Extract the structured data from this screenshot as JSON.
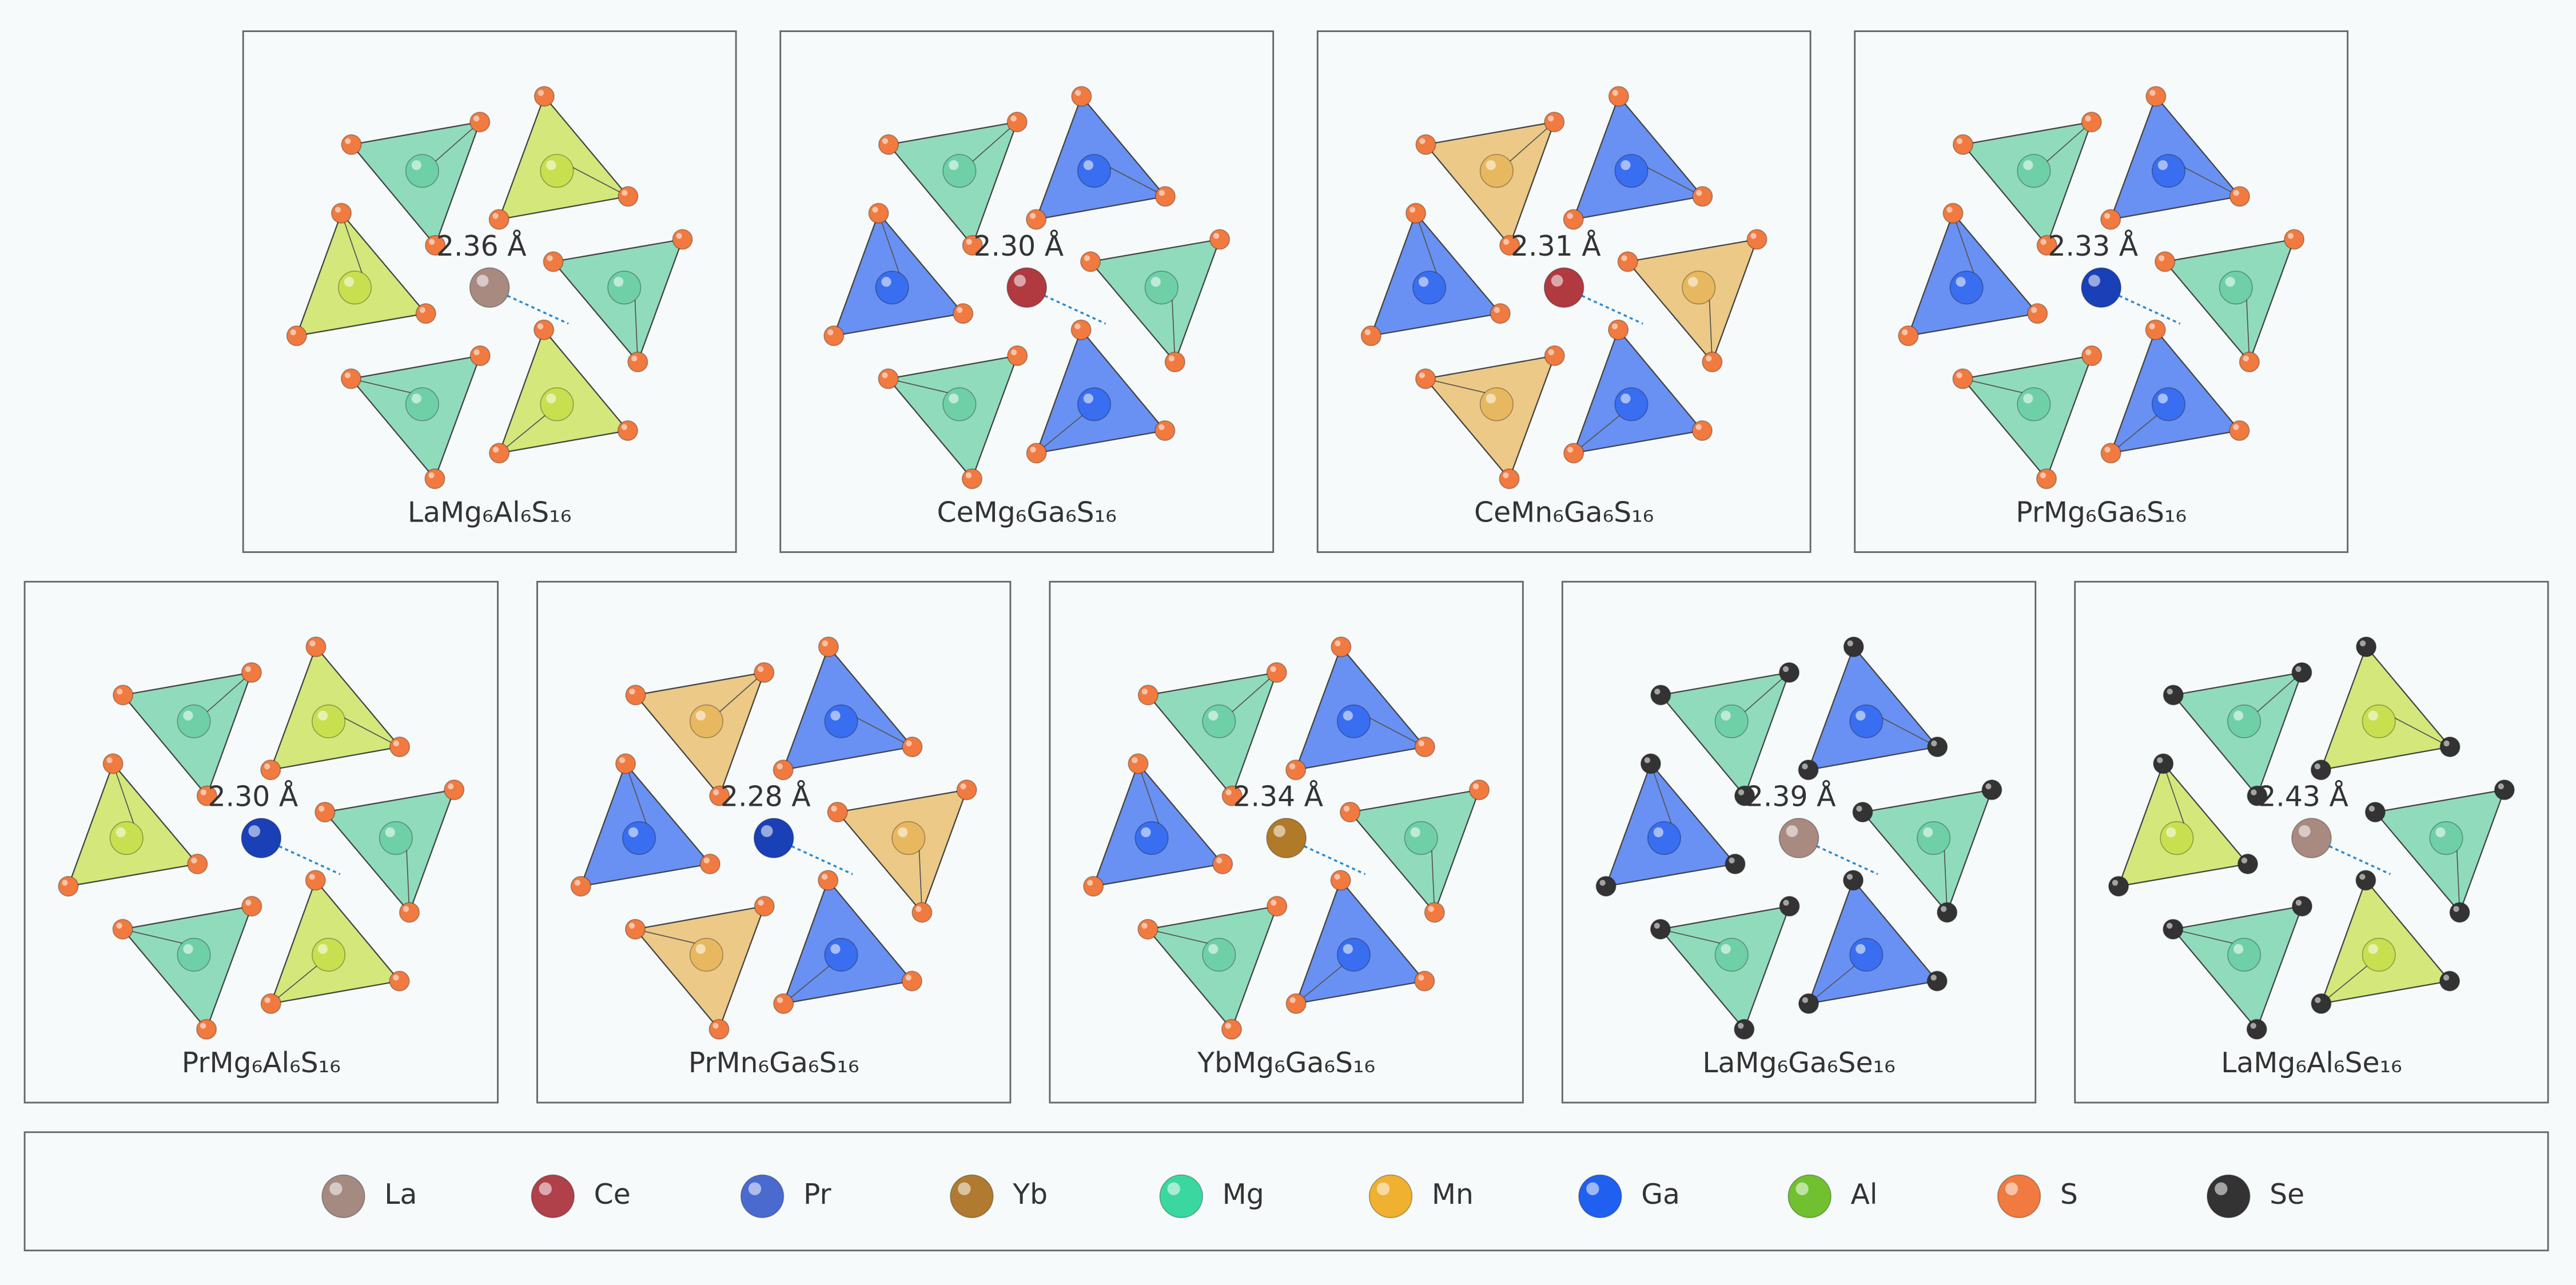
{
  "panels": [
    {
      "formula": "LaMg₆Al₆S₁₆",
      "distance": "2.36 Å",
      "center_color": "#a88a80",
      "tetra_colors": [
        "#6fd0a8",
        "#c8e050"
      ],
      "anion_color": "#f07a40"
    },
    {
      "formula": "CeMg₆Ga₆S₁₆",
      "distance": "2.30 Å",
      "center_color": "#b03a40",
      "tetra_colors": [
        "#6fd0a8",
        "#3a6ef0"
      ],
      "anion_color": "#f07a40"
    },
    {
      "formula": "CeMn₆Ga₆S₁₆",
      "distance": "2.31 Å",
      "center_color": "#b03a40",
      "tetra_colors": [
        "#e8b860",
        "#3a6ef0"
      ],
      "anion_color": "#f07a40"
    },
    {
      "formula": "PrMg₆Ga₆S₁₆",
      "distance": "2.33 Å",
      "center_color": "#1a40b8",
      "tetra_colors": [
        "#6fd0a8",
        "#3a6ef0"
      ],
      "anion_color": "#f07a40"
    },
    {
      "formula": "PrMg₆Al₆S₁₆",
      "distance": "2.30 Å",
      "center_color": "#1a40b8",
      "tetra_colors": [
        "#6fd0a8",
        "#c8e050"
      ],
      "anion_color": "#f07a40"
    },
    {
      "formula": "PrMn₆Ga₆S₁₆",
      "distance": "2.28 Å",
      "center_color": "#1a40b8",
      "tetra_colors": [
        "#e8b860",
        "#3a6ef0"
      ],
      "anion_color": "#f07a40"
    },
    {
      "formula": "YbMg₆Ga₆S₁₆",
      "distance": "2.34 Å",
      "center_color": "#b07a28",
      "tetra_colors": [
        "#6fd0a8",
        "#3a6ef0"
      ],
      "anion_color": "#f07a40"
    },
    {
      "formula": "LaMg₆Ga₆Se₁₆",
      "distance": "2.39 Å",
      "center_color": "#a88a80",
      "tetra_colors": [
        "#6fd0a8",
        "#3a6ef0"
      ],
      "anion_color": "#333333"
    },
    {
      "formula": "LaMg₆Al₆Se₁₆",
      "distance": "2.43 Å",
      "center_color": "#a88a80",
      "tetra_colors": [
        "#6fd0a8",
        "#c8e050"
      ],
      "anion_color": "#333333"
    }
  ],
  "legend": [
    {
      "name": "La",
      "color": "#a48a80"
    },
    {
      "name": "Ce",
      "color": "#b0404a"
    },
    {
      "name": "Pr",
      "color": "#4a6ad0"
    },
    {
      "name": "Yb",
      "color": "#b07a30"
    },
    {
      "name": "Mg",
      "color": "#3ad8a0"
    },
    {
      "name": "Mn",
      "color": "#f0b030"
    },
    {
      "name": "Ga",
      "color": "#2060f0"
    },
    {
      "name": "Al",
      "color": "#70c030"
    },
    {
      "name": "S",
      "color": "#f07a40"
    },
    {
      "name": "Se",
      "color": "#333333"
    }
  ]
}
